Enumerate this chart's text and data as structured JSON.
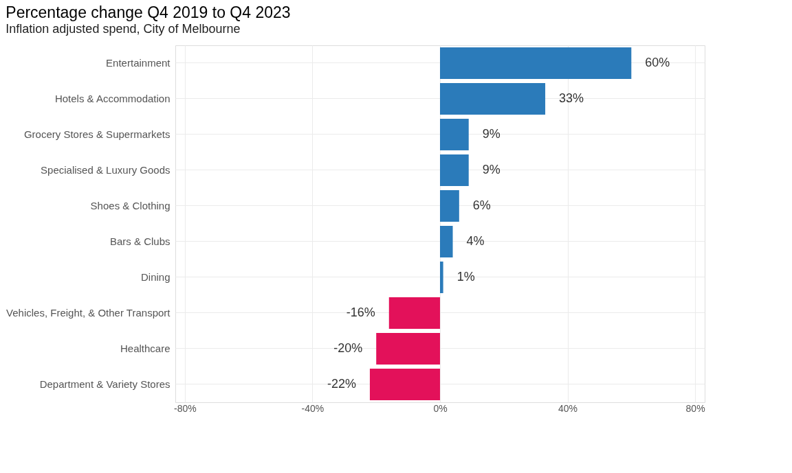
{
  "chart_data": {
    "type": "bar",
    "orientation": "horizontal",
    "title": "Percentage change Q4 2019 to Q4 2023",
    "subtitle": "Inflation adjusted spend, City of Melbourne",
    "categories": [
      "Entertainment",
      "Hotels & Accommodation",
      "Grocery Stores & Supermarkets",
      "Specialised & Luxury Goods",
      "Shoes & Clothing",
      "Bars & Clubs",
      "Dining",
      "Vehicles, Freight, & Other Transport",
      "Healthcare",
      "Department & Variety Stores"
    ],
    "values": [
      60,
      33,
      9,
      9,
      6,
      4,
      1,
      -16,
      -20,
      -22
    ],
    "colors": [
      "#2b7bba",
      "#2b7bba",
      "#2b7bba",
      "#2b7bba",
      "#2b7bba",
      "#2b7bba",
      "#2b7bba",
      "#e3115a",
      "#e3115a",
      "#e3115a"
    ],
    "value_labels": [
      "60%",
      "33%",
      "9%",
      "9%",
      "6%",
      "4%",
      "1%",
      "-16%",
      "-20%",
      "-22%"
    ],
    "xlim": [
      -83,
      83
    ],
    "xticks": [
      {
        "value": -80,
        "label": "-80%"
      },
      {
        "value": -40,
        "label": "-40%"
      },
      {
        "value": 0,
        "label": "0%"
      },
      {
        "value": 40,
        "label": "40%"
      },
      {
        "value": 80,
        "label": "80%"
      }
    ],
    "grid": true
  }
}
